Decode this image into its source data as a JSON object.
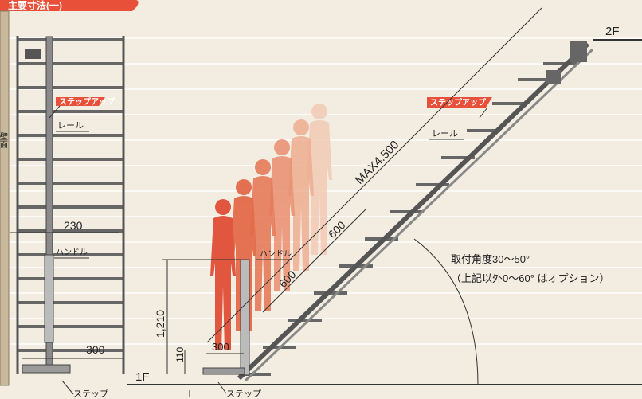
{
  "header": {
    "title": "主要寸法(一)"
  },
  "wall": {
    "label": "壁面"
  },
  "floors": {
    "upper": "2F",
    "lower": "1F"
  },
  "left_view": {
    "stepup_tag": "ステップアップ",
    "rail_label": "レール",
    "width_dim": "230",
    "handle_label": "ハンドル",
    "step_dim": "300",
    "step_label": "ステップ"
  },
  "right_view": {
    "stepup_tag": "ステップアップ",
    "rail_label": "レール",
    "max_length": "MAX4.500",
    "pitch_upper": "600",
    "pitch_lower": "600",
    "handle_label": "ハンドル",
    "height_dim": "1,210",
    "step_height": "110",
    "step_depth": "300",
    "step_label": "ステップ",
    "angle_line1": "取付角度30〜50°",
    "angle_line2": "（上記以外0〜60° はオプション）"
  },
  "colors": {
    "background": "#f3ece1",
    "accent": "#e8503a",
    "frame": "#5a5a5a",
    "person_dark": "#e0563f",
    "person_light": "#f2c8b2"
  }
}
